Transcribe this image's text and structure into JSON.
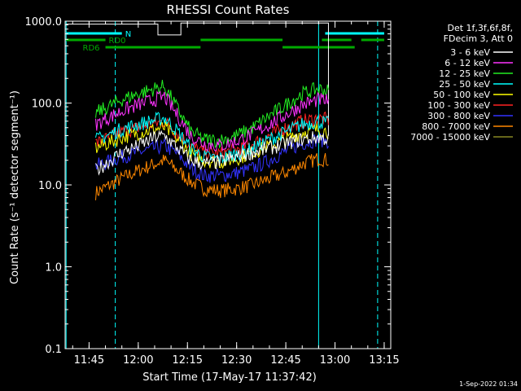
{
  "chart_data": {
    "type": "line",
    "title": "RHESSI Count Rates",
    "xlabel": "Start Time (17-May-17 11:37:42)",
    "ylabel": "Count Rate (s⁻¹ detector segment⁻¹)",
    "y_scale": "log",
    "ylim": [
      0.1,
      1000.0
    ],
    "y_ticks": [
      "0.1",
      "1.0",
      "10.0",
      "100.0",
      "1000.0"
    ],
    "xlim": [
      "11:37:42",
      "13:17:00"
    ],
    "x_ticks": [
      "11:45",
      "12:00",
      "12:15",
      "12:30",
      "12:45",
      "13:00",
      "13:15"
    ],
    "grid": false,
    "legend_placement": "right",
    "legend_header": [
      "Det 1f,3f,6f,8f,",
      "FDecim 3, Att 0"
    ],
    "timestamp": "1-Sep-2022 01:34",
    "time_points": [
      "11:47",
      "11:55",
      "12:00",
      "12:05",
      "12:08",
      "12:12",
      "12:16",
      "12:20",
      "12:25",
      "12:30",
      "12:35",
      "12:40",
      "12:45",
      "12:50",
      "12:55",
      "12:58"
    ],
    "series": [
      {
        "name": "3 - 6 keV",
        "color": "#ffffff",
        "values": [
          15,
          25,
          30,
          38,
          40,
          28,
          20,
          18,
          19,
          22,
          25,
          28,
          32,
          36,
          38,
          36
        ]
      },
      {
        "name": "6 - 12 keV",
        "color": "#ff33ff",
        "values": [
          55,
          80,
          95,
          110,
          120,
          70,
          40,
          32,
          30,
          34,
          42,
          55,
          72,
          95,
          110,
          105
        ]
      },
      {
        "name": "12 - 25 keV",
        "color": "#22ee22",
        "values": [
          75,
          110,
          130,
          150,
          160,
          85,
          45,
          36,
          35,
          40,
          50,
          70,
          95,
          130,
          150,
          140
        ]
      },
      {
        "name": "25 - 50 keV",
        "color": "#00ffff",
        "values": [
          35,
          48,
          55,
          62,
          66,
          45,
          28,
          22,
          21,
          24,
          28,
          36,
          44,
          55,
          60,
          56
        ]
      },
      {
        "name": "50 - 100 keV",
        "color": "#ffff00",
        "values": [
          28,
          38,
          43,
          48,
          50,
          36,
          24,
          20,
          19,
          21,
          25,
          30,
          36,
          44,
          48,
          45
        ]
      },
      {
        "name": "100 - 300 keV",
        "color": "#ff2222",
        "values": [
          32,
          44,
          50,
          56,
          60,
          42,
          30,
          25,
          24,
          27,
          32,
          40,
          50,
          60,
          65,
          62
        ]
      },
      {
        "name": "300 - 800 keV",
        "color": "#3333ff",
        "values": [
          17,
          22,
          25,
          28,
          30,
          24,
          16,
          13,
          13,
          14,
          16,
          20,
          26,
          32,
          36,
          34
        ]
      },
      {
        "name": "800 - 7000 keV",
        "color": "#ff8800",
        "values": [
          8,
          12,
          15,
          18,
          20,
          15,
          11,
          9,
          8.5,
          9,
          10,
          12,
          14,
          18,
          21,
          20
        ]
      },
      {
        "name": "7000 - 15000 keV",
        "color": "#888822",
        "values": []
      }
    ],
    "status_bar": {
      "name": "top-status-line",
      "color": "#ffffff",
      "segments": [
        {
          "from": "11:38",
          "to": "12:06",
          "value": 920
        },
        {
          "from": "12:06",
          "to": "12:13",
          "value": 680
        },
        {
          "from": "12:13",
          "to": "12:58",
          "value": 950
        }
      ]
    },
    "flags": [
      {
        "name": "N",
        "color": "#00ffff",
        "row": 1,
        "spans": [
          [
            "11:38",
            "11:55"
          ],
          [
            "12:57",
            "13:15"
          ]
        ]
      },
      {
        "name": "RD0",
        "color": "#00aa00",
        "row": 2,
        "spans": [
          [
            "11:38",
            "11:50"
          ],
          [
            "12:19",
            "12:44"
          ],
          [
            "12:56",
            "13:05"
          ],
          [
            "13:08",
            "13:15"
          ]
        ]
      },
      {
        "name": "RD6",
        "color": "#00aa00",
        "row": 3,
        "spans": [
          [
            "11:50",
            "12:19"
          ],
          [
            "12:44",
            "13:06"
          ]
        ]
      }
    ],
    "vertical_markers": [
      {
        "time": "11:38",
        "style": "solid",
        "color": "#00ffff"
      },
      {
        "time": "11:53",
        "style": "dashed",
        "color": "#00ffff"
      },
      {
        "time": "12:55",
        "style": "solid",
        "color": "#00ffff"
      },
      {
        "time": "13:13",
        "style": "dashed",
        "color": "#00ffff"
      }
    ]
  }
}
